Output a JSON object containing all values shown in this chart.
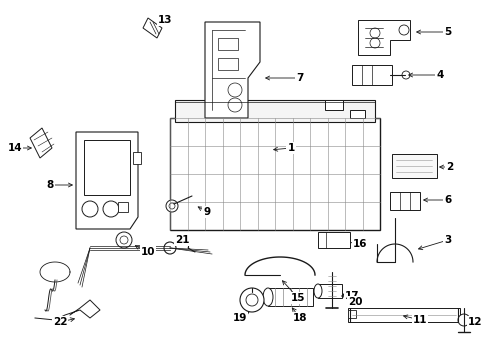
{
  "bg_color": "#ffffff",
  "fig_width": 4.89,
  "fig_height": 3.6,
  "dpi": 100,
  "line_color": "#1a1a1a",
  "label_fontsize": 7.5,
  "arrow_fontsize": 6
}
